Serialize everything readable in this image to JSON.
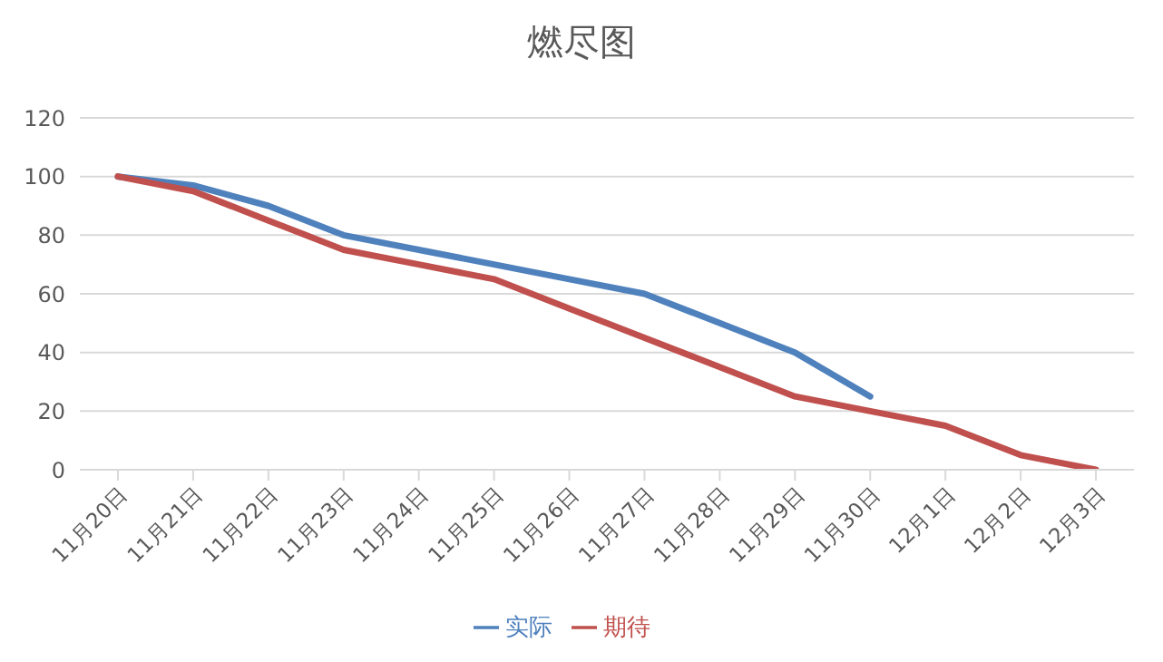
{
  "chart_data": {
    "type": "line",
    "title": "燃尽图",
    "categories": [
      "11月20日",
      "11月21日",
      "11月22日",
      "11月23日",
      "11月24日",
      "11月25日",
      "11月26日",
      "11月27日",
      "11月28日",
      "11月29日",
      "11月30日",
      "12月1日",
      "12月2日",
      "12月3日"
    ],
    "series": [
      {
        "name": "实际",
        "color": "#4f81bd",
        "values": [
          100,
          97,
          90,
          80,
          75,
          70,
          65,
          60,
          50,
          40,
          25,
          null,
          null,
          null
        ]
      },
      {
        "name": "期待",
        "color": "#c0504d",
        "values": [
          100,
          95,
          85,
          75,
          70,
          65,
          55,
          45,
          35,
          25,
          20,
          15,
          5,
          0
        ]
      }
    ],
    "ylim": [
      0,
      120
    ],
    "yticks": [
      0,
      20,
      40,
      60,
      80,
      100,
      120
    ],
    "grid": "y",
    "legend": "bottom",
    "marker": "none",
    "line_style": "solid"
  }
}
